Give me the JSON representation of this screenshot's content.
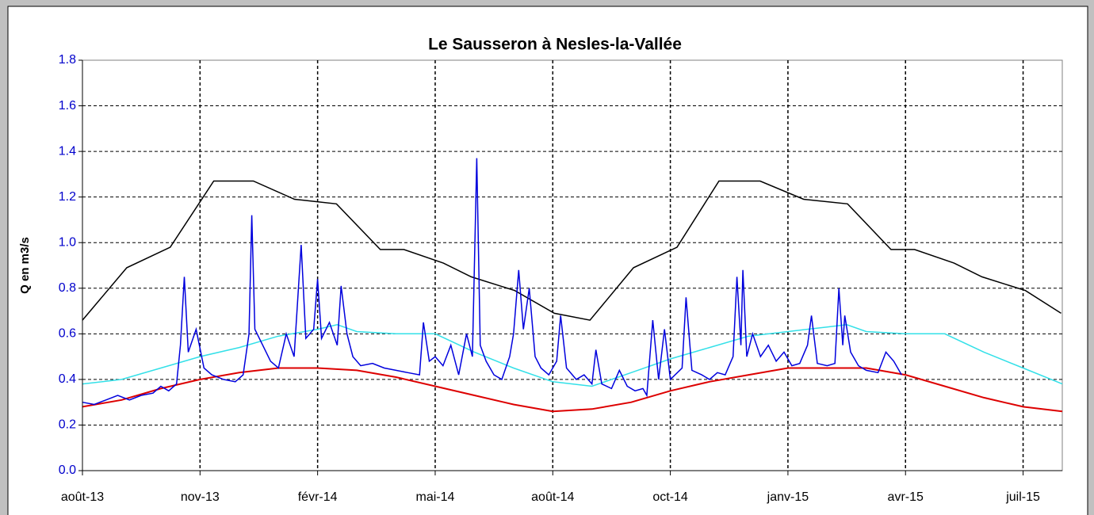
{
  "chart_data": {
    "type": "line",
    "title": "Le Sausseron à Nesles-la-Vallée",
    "y_label": "Q en m3/s",
    "xlim": [
      0,
      25
    ],
    "xticks": [
      {
        "value": 0,
        "label": "août-13"
      },
      {
        "value": 3,
        "label": "nov-13"
      },
      {
        "value": 6,
        "label": "févr-14"
      },
      {
        "value": 9,
        "label": "mai-14"
      },
      {
        "value": 12,
        "label": "août-14"
      },
      {
        "value": 15,
        "label": "oct-14"
      },
      {
        "value": 18,
        "label": "janv-15"
      },
      {
        "value": 21,
        "label": "avr-15"
      },
      {
        "value": 24,
        "label": "juil-15"
      }
    ],
    "ylim": [
      0,
      1.8
    ],
    "yticks": [
      {
        "value": 0,
        "label": "0.0"
      },
      0.2,
      0.4,
      0.6,
      0.8,
      {
        "value": 1,
        "label": "1.0"
      },
      1.2,
      1.4,
      1.6,
      1.8
    ],
    "grid": true,
    "series": [
      {
        "color": "#000000",
        "x": [
          0,
          1.13,
          2.24,
          3.35,
          4.36,
          5.41,
          6.48,
          7.6,
          8.2,
          9.21,
          9.92,
          11.03,
          12.04,
          12.95,
          14.06,
          15.17,
          16.24,
          17.29,
          18.4,
          19.52,
          20.63,
          21.23,
          22.24,
          22.95,
          24.06,
          24.97
        ],
        "values": [
          0.66,
          0.89,
          0.98,
          1.27,
          1.27,
          1.19,
          1.17,
          0.97,
          0.97,
          0.91,
          0.85,
          0.79,
          0.69,
          0.66,
          0.89,
          0.98,
          1.27,
          1.27,
          1.19,
          1.17,
          0.97,
          0.97,
          0.91,
          0.85,
          0.79,
          0.69
        ]
      },
      {
        "color": "#33e0e8",
        "x": [
          0,
          1,
          2,
          3,
          4,
          5,
          6,
          6.5,
          7,
          8,
          9,
          10,
          11,
          12,
          13,
          14,
          15,
          16,
          17,
          18,
          19,
          19.5,
          20,
          21,
          22,
          23,
          24,
          25
        ],
        "values": [
          0.38,
          0.4,
          0.45,
          0.5,
          0.54,
          0.59,
          0.62,
          0.64,
          0.61,
          0.6,
          0.6,
          0.52,
          0.45,
          0.39,
          0.37,
          0.43,
          0.49,
          0.54,
          0.59,
          0.61,
          0.63,
          0.64,
          0.61,
          0.6,
          0.6,
          0.52,
          0.45,
          0.38
        ]
      },
      {
        "color": "#dd0000",
        "x": [
          0,
          1,
          2,
          3,
          4,
          5,
          6,
          7,
          8,
          9,
          10,
          11,
          12,
          13,
          14,
          15,
          16,
          17,
          18,
          19,
          20,
          21,
          22,
          23,
          24,
          25
        ],
        "values": [
          0.28,
          0.31,
          0.36,
          0.4,
          0.43,
          0.45,
          0.45,
          0.44,
          0.41,
          0.37,
          0.33,
          0.29,
          0.26,
          0.27,
          0.3,
          0.35,
          0.39,
          0.42,
          0.45,
          0.45,
          0.45,
          0.42,
          0.37,
          0.32,
          0.28,
          0.26
        ]
      },
      {
        "color": "#0000dd",
        "x": [
          0,
          0.3,
          0.6,
          0.9,
          1.2,
          1.5,
          1.8,
          2.0,
          2.2,
          2.4,
          2.5,
          2.6,
          2.7,
          2.9,
          3.1,
          3.3,
          3.6,
          3.9,
          4.1,
          4.25,
          4.32,
          4.4,
          4.6,
          4.8,
          5.0,
          5.2,
          5.4,
          5.58,
          5.7,
          5.9,
          6.0,
          6.1,
          6.3,
          6.5,
          6.6,
          6.75,
          6.9,
          7.1,
          7.4,
          7.7,
          8.0,
          8.3,
          8.6,
          8.7,
          8.85,
          9.0,
          9.2,
          9.4,
          9.6,
          9.8,
          9.95,
          10.06,
          10.15,
          10.3,
          10.5,
          10.7,
          10.9,
          11.0,
          11.13,
          11.25,
          11.4,
          11.55,
          11.7,
          11.9,
          12.1,
          12.2,
          12.35,
          12.6,
          12.8,
          13.0,
          13.1,
          13.25,
          13.5,
          13.7,
          13.9,
          14.1,
          14.3,
          14.4,
          14.55,
          14.7,
          14.85,
          15.0,
          15.3,
          15.4,
          15.55,
          15.8,
          16.0,
          16.2,
          16.4,
          16.6,
          16.7,
          16.8,
          16.85,
          16.95,
          17.1,
          17.3,
          17.5,
          17.7,
          17.9,
          18.1,
          18.3,
          18.5,
          18.6,
          18.75,
          19.0,
          19.2,
          19.3,
          19.4,
          19.45,
          19.6,
          19.8,
          20.0,
          20.3,
          20.5,
          20.7,
          20.9
        ],
        "values": [
          0.3,
          0.29,
          0.31,
          0.33,
          0.31,
          0.33,
          0.34,
          0.37,
          0.35,
          0.38,
          0.55,
          0.85,
          0.52,
          0.62,
          0.45,
          0.42,
          0.4,
          0.39,
          0.42,
          0.6,
          1.12,
          0.62,
          0.55,
          0.48,
          0.45,
          0.6,
          0.5,
          0.99,
          0.58,
          0.62,
          0.84,
          0.58,
          0.65,
          0.55,
          0.81,
          0.6,
          0.5,
          0.46,
          0.47,
          0.45,
          0.44,
          0.43,
          0.42,
          0.65,
          0.48,
          0.5,
          0.46,
          0.55,
          0.42,
          0.6,
          0.5,
          1.37,
          0.55,
          0.48,
          0.42,
          0.4,
          0.5,
          0.6,
          0.88,
          0.62,
          0.8,
          0.5,
          0.45,
          0.42,
          0.48,
          0.68,
          0.45,
          0.4,
          0.42,
          0.38,
          0.53,
          0.38,
          0.36,
          0.44,
          0.37,
          0.35,
          0.36,
          0.33,
          0.66,
          0.4,
          0.62,
          0.4,
          0.45,
          0.76,
          0.44,
          0.42,
          0.4,
          0.43,
          0.42,
          0.5,
          0.85,
          0.55,
          0.88,
          0.5,
          0.6,
          0.5,
          0.55,
          0.48,
          0.52,
          0.46,
          0.47,
          0.55,
          0.68,
          0.47,
          0.46,
          0.47,
          0.8,
          0.55,
          0.68,
          0.52,
          0.46,
          0.44,
          0.43,
          0.52,
          0.48,
          0.42
        ]
      }
    ]
  }
}
